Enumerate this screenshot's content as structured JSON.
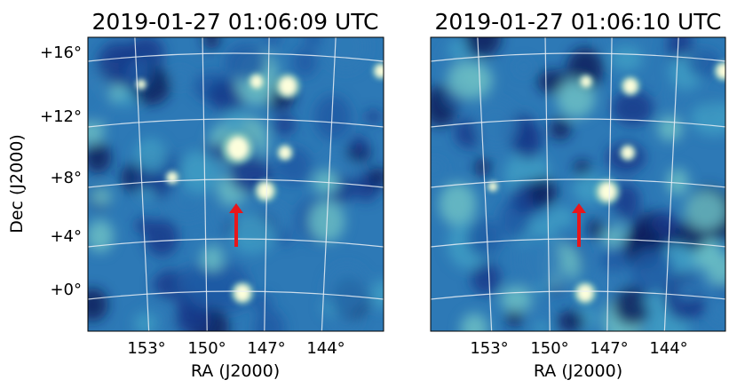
{
  "panels": [
    {
      "title": "2019-01-27 01:06:09 UTC",
      "xlabel": "RA (J2000)",
      "ylabel": "Dec (J2000)",
      "x_ticks": [
        "153°",
        "150°",
        "147°",
        "144°"
      ],
      "y_ticks": [
        "+16°",
        "+12°",
        "+8°",
        "+4°",
        "+0°"
      ],
      "arrow_color": "#e8161b",
      "sources": "bright transient near RA 148°, Dec +7°"
    },
    {
      "title": "2019-01-27 01:06:10 UTC",
      "xlabel": "RA (J2000)",
      "x_ticks": [
        "153°",
        "150°",
        "147°",
        "144°"
      ],
      "arrow_color": "#e8161b"
    }
  ],
  "colormap": "YlGnBu_r"
}
